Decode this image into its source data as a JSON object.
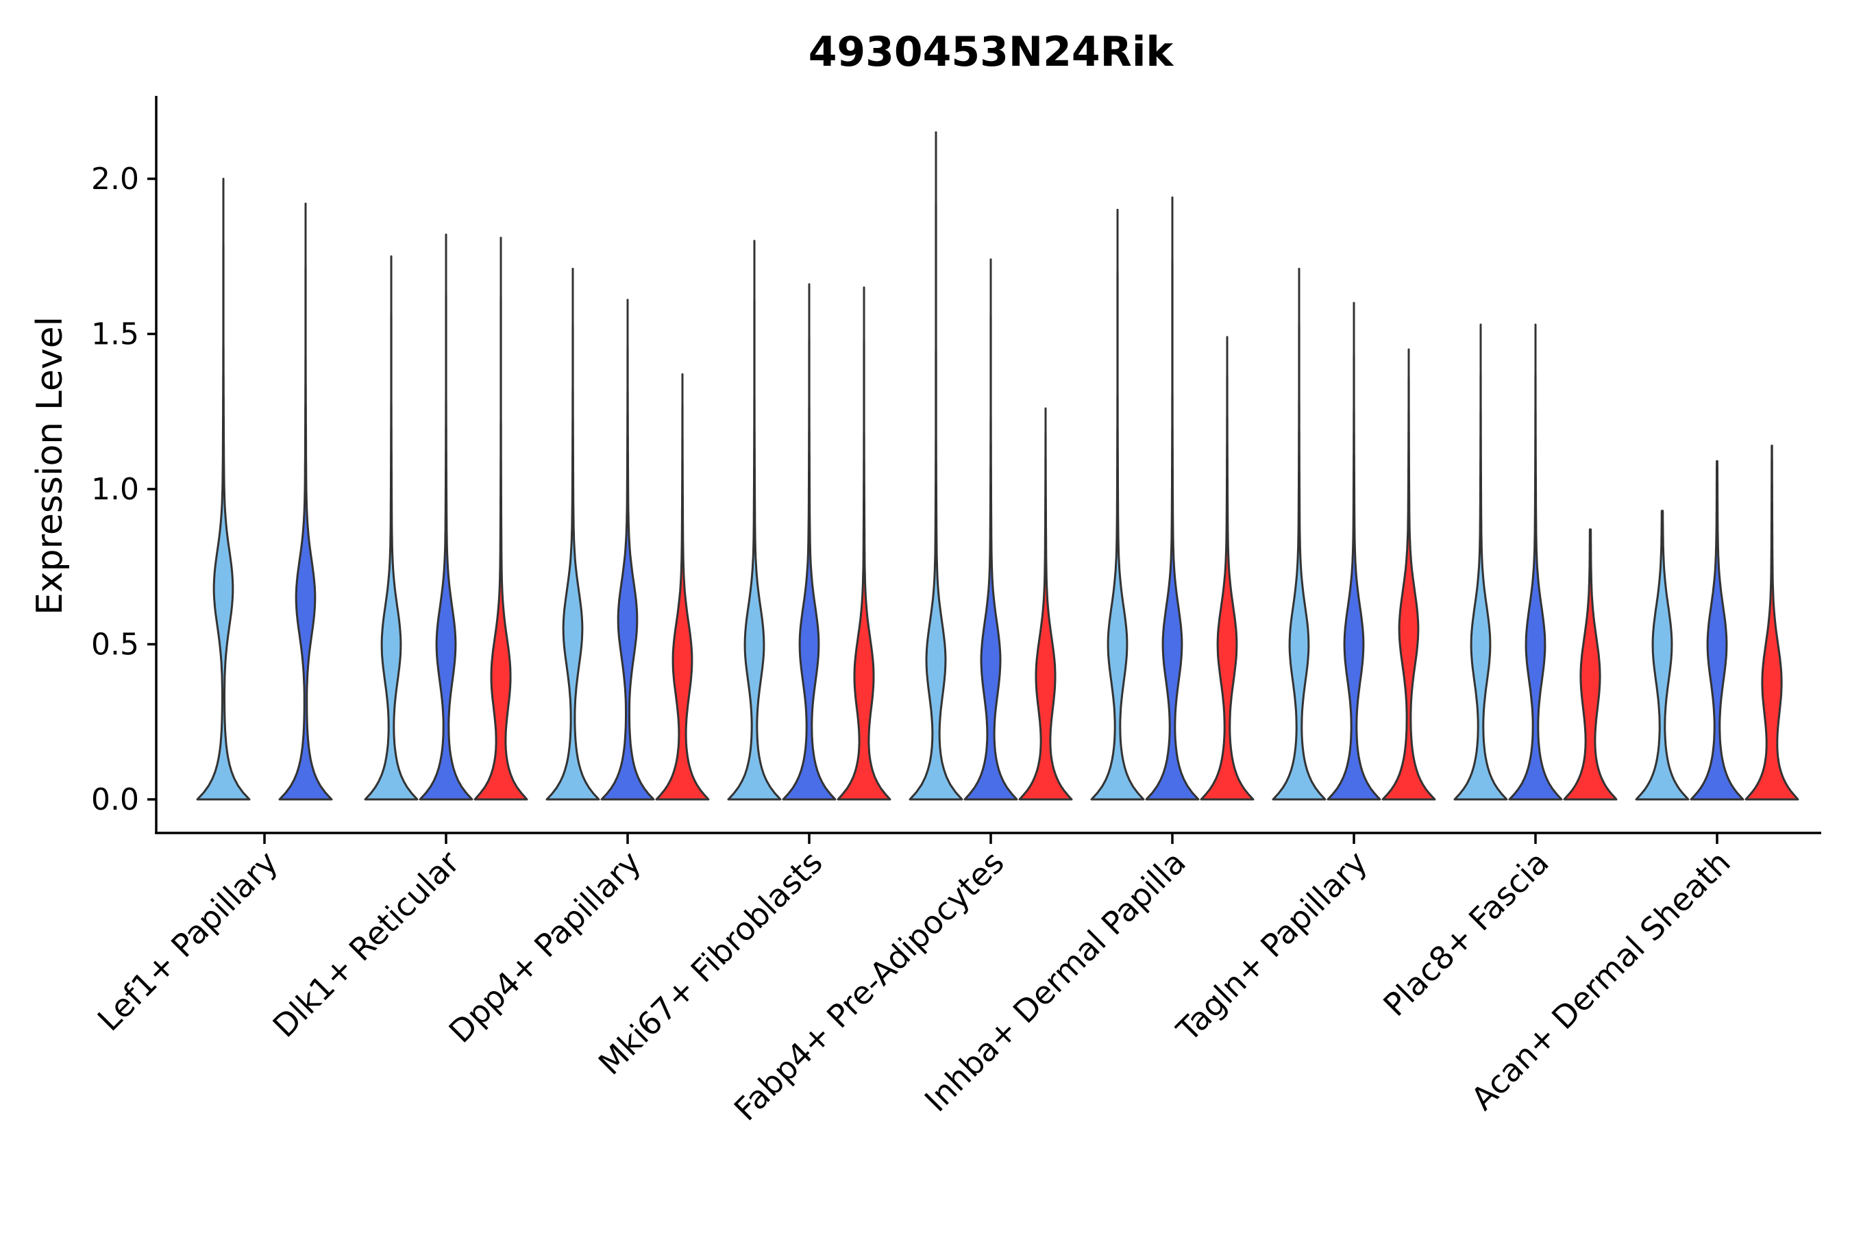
{
  "chart_data": {
    "type": "violin",
    "title": "4930453N24Rik",
    "xlabel": "",
    "ylabel": "Expression Level",
    "ylim": [
      -0.11,
      2.26
    ],
    "yticks": [
      0.0,
      0.5,
      1.0,
      1.5,
      2.0
    ],
    "ytick_labels": [
      "0.0",
      "0.5",
      "1.0",
      "1.5",
      "2.0"
    ],
    "grid": false,
    "legend": "none",
    "categories": [
      "Lef1+ Papillary",
      "Dlk1+ Reticular",
      "Dpp4+ Papillary",
      "Mki67+ Fibroblasts",
      "Fabp4+ Pre-Adipocytes",
      "Inhba+ Dermal Papilla",
      "Tagln+ Papillary",
      "Plac8+ Fascia",
      "Acan+ Dermal Sheath"
    ],
    "series": [
      {
        "name": "light blue group",
        "color": "#7dbfec",
        "max_values": [
          2.0,
          1.75,
          1.71,
          1.8,
          2.15,
          1.9,
          1.71,
          1.53,
          0.93
        ],
        "modes": [
          0.68,
          0.5,
          0.55,
          0.5,
          0.45,
          0.5,
          0.5,
          0.5,
          0.5
        ]
      },
      {
        "name": "dark blue group",
        "color": "#4a6ee8",
        "max_values": [
          1.92,
          1.82,
          1.61,
          1.66,
          1.74,
          1.94,
          1.6,
          1.53,
          1.09
        ],
        "modes": [
          0.65,
          0.5,
          0.58,
          0.5,
          0.45,
          0.5,
          0.5,
          0.5,
          0.5
        ]
      },
      {
        "name": "red group",
        "color": "#ff3333",
        "max_values": [
          null,
          1.81,
          1.37,
          1.65,
          1.26,
          1.49,
          1.45,
          0.87,
          1.14
        ],
        "modes": [
          null,
          0.4,
          0.45,
          0.4,
          0.4,
          0.5,
          0.55,
          0.4,
          0.38
        ]
      }
    ]
  }
}
